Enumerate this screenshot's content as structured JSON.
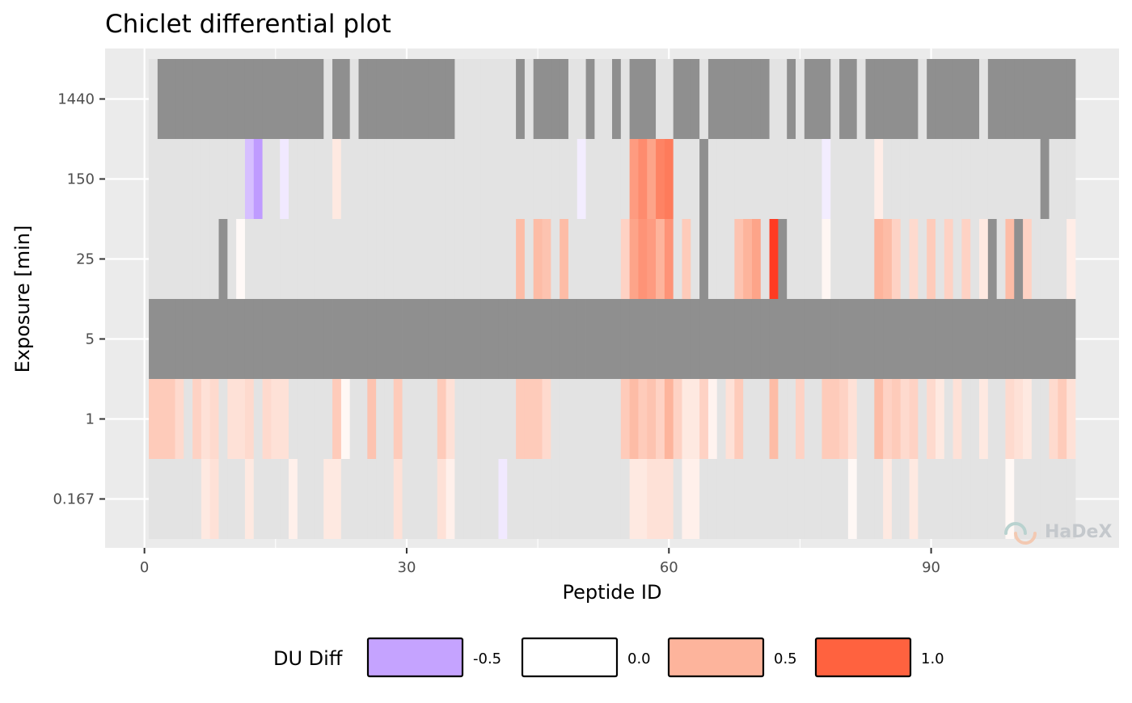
{
  "chart_data": {
    "type": "heatmap",
    "title": "Chiclet differential plot",
    "xlabel": "Peptide ID",
    "ylabel": "Exposure [min]",
    "x_ticks": [
      0,
      30,
      60,
      90
    ],
    "x_range": [
      -4.5,
      111.5
    ],
    "x_min": 1,
    "x_max": 106,
    "y_categories": [
      "0.167",
      "1",
      "5",
      "25",
      "150",
      "1440"
    ],
    "grid": true,
    "legend": {
      "title": "DU Diff",
      "position": "bottom",
      "entries": [
        {
          "label": "-0.5",
          "color": "#c5a3ff"
        },
        {
          "label": "0.0",
          "color": "#ffffff"
        },
        {
          "label": "0.5",
          "color": "#fdb49c"
        },
        {
          "label": "1.0",
          "color": "#ff623f"
        }
      ]
    },
    "na_color": "#8f8f8f",
    "zero_color": "#e3e3e3",
    "rows": [
      {
        "exposure": "1440",
        "values": [],
        "missing": [
          "2-20",
          "22-23",
          "25-35",
          "43",
          "45-48",
          "51",
          "54",
          "56-58",
          "61-63",
          "65-71",
          "74",
          "76-78",
          "80-81",
          "83-88",
          "90-95",
          "97-106"
        ]
      },
      {
        "exposure": "150",
        "values": [
          {
            "id": 12,
            "v": -0.35
          },
          {
            "id": 13,
            "v": -0.6
          },
          {
            "id": 16,
            "v": -0.12
          },
          {
            "id": 22,
            "v": 0.15
          },
          {
            "id": 50,
            "v": -0.1
          },
          {
            "id": 56,
            "v": 0.65
          },
          {
            "id": 57,
            "v": 0.75
          },
          {
            "id": 58,
            "v": 0.6
          },
          {
            "id": 59,
            "v": 0.8
          },
          {
            "id": 60,
            "v": 0.85
          },
          {
            "id": 78,
            "v": -0.1
          },
          {
            "id": 84,
            "v": 0.12
          }
        ],
        "missing": [
          "64",
          "103"
        ]
      },
      {
        "exposure": "25",
        "values": [
          {
            "id": 11,
            "v": 0.04
          },
          {
            "id": 43,
            "v": 0.45
          },
          {
            "id": 45,
            "v": 0.45
          },
          {
            "id": 46,
            "v": 0.4
          },
          {
            "id": 48,
            "v": 0.45
          },
          {
            "id": 55,
            "v": 0.3
          },
          {
            "id": 56,
            "v": 0.6
          },
          {
            "id": 57,
            "v": 0.7
          },
          {
            "id": 58,
            "v": 0.65
          },
          {
            "id": 59,
            "v": 0.5
          },
          {
            "id": 60,
            "v": 0.7
          },
          {
            "id": 62,
            "v": 0.35
          },
          {
            "id": 68,
            "v": 0.4
          },
          {
            "id": 69,
            "v": 0.5
          },
          {
            "id": 70,
            "v": 0.6
          },
          {
            "id": 72,
            "v": 1.1
          },
          {
            "id": 78,
            "v": 0.06
          },
          {
            "id": 84,
            "v": 0.5
          },
          {
            "id": 85,
            "v": 0.45
          },
          {
            "id": 86,
            "v": 0.3
          },
          {
            "id": 88,
            "v": 0.25
          },
          {
            "id": 90,
            "v": 0.35
          },
          {
            "id": 92,
            "v": 0.3
          },
          {
            "id": 94,
            "v": 0.3
          },
          {
            "id": 96,
            "v": 0.15
          },
          {
            "id": 99,
            "v": 0.45
          },
          {
            "id": 101,
            "v": 0.3
          },
          {
            "id": 106,
            "v": 0.12
          }
        ],
        "missing": [
          "9",
          "64",
          "73",
          "97",
          "100"
        ]
      },
      {
        "exposure": "5",
        "values": [],
        "missing": [
          "1-106"
        ]
      },
      {
        "exposure": "1",
        "values": [
          {
            "id": 1,
            "v": 0.35
          },
          {
            "id": 2,
            "v": 0.35
          },
          {
            "id": 3,
            "v": 0.35
          },
          {
            "id": 4,
            "v": 0.25
          },
          {
            "id": 6,
            "v": 0.3
          },
          {
            "id": 7,
            "v": 0.2
          },
          {
            "id": 8,
            "v": 0.25
          },
          {
            "id": 10,
            "v": 0.2
          },
          {
            "id": 11,
            "v": 0.2
          },
          {
            "id": 12,
            "v": 0.25
          },
          {
            "id": 14,
            "v": 0.25
          },
          {
            "id": 15,
            "v": 0.2
          },
          {
            "id": 16,
            "v": 0.2
          },
          {
            "id": 22,
            "v": 0.35
          },
          {
            "id": 23,
            "v": 0.05
          },
          {
            "id": 26,
            "v": 0.4
          },
          {
            "id": 29,
            "v": 0.35
          },
          {
            "id": 34,
            "v": 0.35
          },
          {
            "id": 35,
            "v": 0.2
          },
          {
            "id": 43,
            "v": 0.35
          },
          {
            "id": 44,
            "v": 0.35
          },
          {
            "id": 45,
            "v": 0.35
          },
          {
            "id": 46,
            "v": 0.25
          },
          {
            "id": 55,
            "v": 0.35
          },
          {
            "id": 56,
            "v": 0.45
          },
          {
            "id": 57,
            "v": 0.35
          },
          {
            "id": 58,
            "v": 0.4
          },
          {
            "id": 59,
            "v": 0.3
          },
          {
            "id": 60,
            "v": 0.5
          },
          {
            "id": 61,
            "v": 0.3
          },
          {
            "id": 62,
            "v": 0.15
          },
          {
            "id": 63,
            "v": 0.15
          },
          {
            "id": 64,
            "v": 0.3
          },
          {
            "id": 65,
            "v": 0.08
          },
          {
            "id": 67,
            "v": 0.2
          },
          {
            "id": 68,
            "v": 0.35
          },
          {
            "id": 72,
            "v": 0.45
          },
          {
            "id": 75,
            "v": 0.3
          },
          {
            "id": 78,
            "v": 0.35
          },
          {
            "id": 79,
            "v": 0.35
          },
          {
            "id": 80,
            "v": 0.3
          },
          {
            "id": 81,
            "v": 0.2
          },
          {
            "id": 84,
            "v": 0.45
          },
          {
            "id": 85,
            "v": 0.3
          },
          {
            "id": 86,
            "v": 0.35
          },
          {
            "id": 87,
            "v": 0.25
          },
          {
            "id": 88,
            "v": 0.3
          },
          {
            "id": 90,
            "v": 0.25
          },
          {
            "id": 91,
            "v": 0.15
          },
          {
            "id": 93,
            "v": 0.2
          },
          {
            "id": 96,
            "v": 0.15
          },
          {
            "id": 99,
            "v": 0.25
          },
          {
            "id": 100,
            "v": 0.2
          },
          {
            "id": 101,
            "v": 0.15
          },
          {
            "id": 104,
            "v": 0.25
          },
          {
            "id": 105,
            "v": 0.35
          },
          {
            "id": 106,
            "v": 0.2
          }
        ],
        "missing": []
      },
      {
        "exposure": "0.167",
        "values": [
          {
            "id": 7,
            "v": 0.15
          },
          {
            "id": 8,
            "v": 0.2
          },
          {
            "id": 12,
            "v": 0.15
          },
          {
            "id": 17,
            "v": 0.1
          },
          {
            "id": 21,
            "v": 0.15
          },
          {
            "id": 22,
            "v": 0.15
          },
          {
            "id": 29,
            "v": 0.2
          },
          {
            "id": 34,
            "v": 0.2
          },
          {
            "id": 35,
            "v": 0.1
          },
          {
            "id": 41,
            "v": -0.12
          },
          {
            "id": 56,
            "v": 0.15
          },
          {
            "id": 57,
            "v": 0.15
          },
          {
            "id": 58,
            "v": 0.2
          },
          {
            "id": 59,
            "v": 0.2
          },
          {
            "id": 60,
            "v": 0.2
          },
          {
            "id": 62,
            "v": 0.1
          },
          {
            "id": 63,
            "v": 0.1
          },
          {
            "id": 81,
            "v": 0.05
          },
          {
            "id": 85,
            "v": 0.15
          },
          {
            "id": 88,
            "v": 0.15
          },
          {
            "id": 99,
            "v": 0.05
          }
        ],
        "missing": []
      }
    ]
  },
  "watermark": "HaDeX"
}
